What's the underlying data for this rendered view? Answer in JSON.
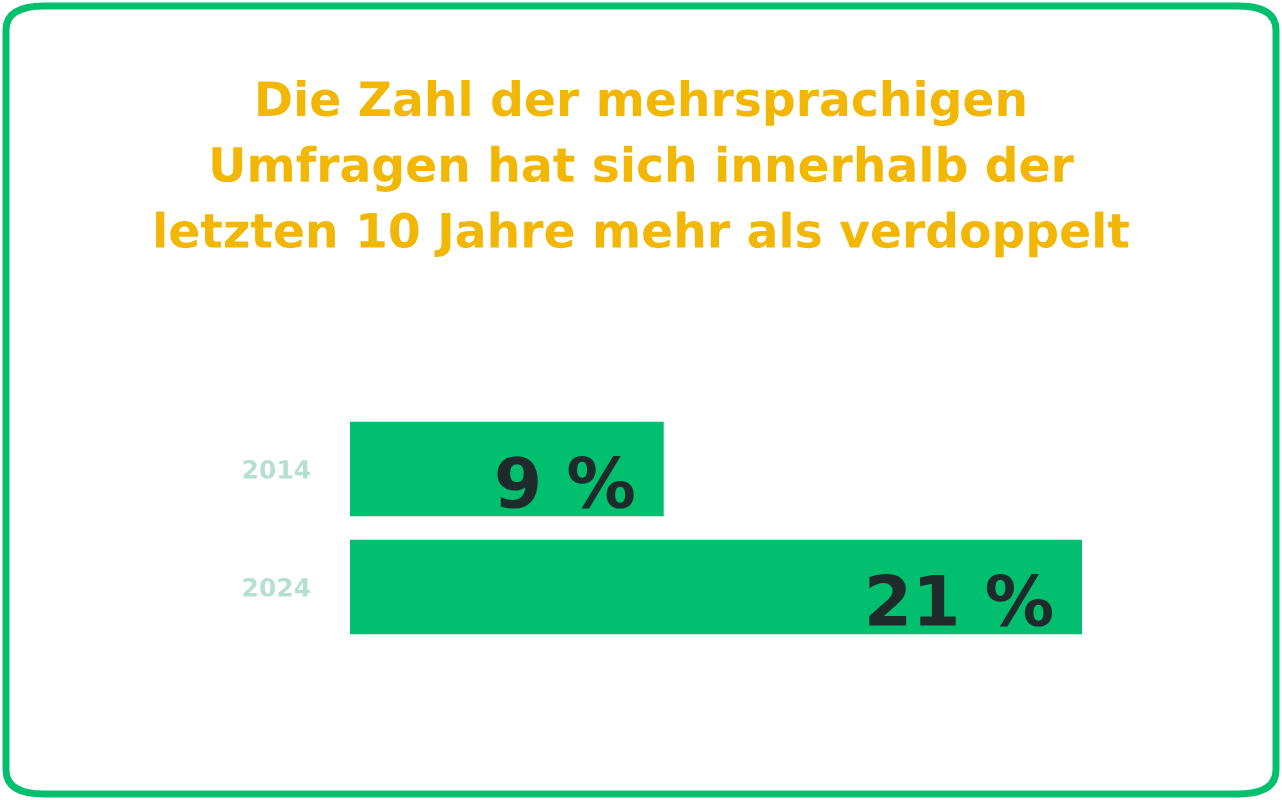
{
  "chart_data": {
    "type": "bar",
    "orientation": "horizontal",
    "title": "Die Zahl der mehrsprachigen\nUmfragen hat sich innerhalb der\nletzten 10 Jahre mehr als verdoppelt",
    "categories": [
      "2014",
      "2024"
    ],
    "values": [
      9,
      21
    ],
    "value_labels": [
      "9 %",
      "21 %"
    ],
    "color": "#00bf6f",
    "tick_labels": "y",
    "grid": false
  }
}
